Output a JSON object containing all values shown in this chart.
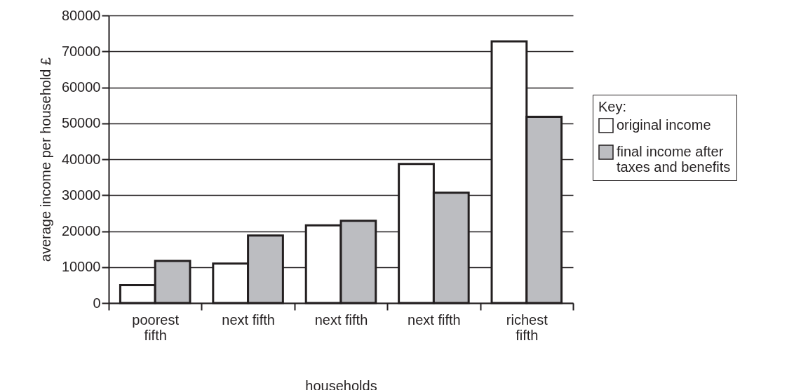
{
  "chart_data": {
    "type": "bar",
    "xlabel": "households",
    "ylabel": "average income per household £",
    "legend_title": "Key:",
    "categories": [
      "poorest\nfifth",
      "next fifth",
      "next fifth",
      "next fifth",
      "richest\nfifth"
    ],
    "series": [
      {
        "name": "original income",
        "color": "#ffffff",
        "values": [
          5000,
          11000,
          21600,
          38700,
          72800
        ]
      },
      {
        "name": "final income after\ntaxes and benefits",
        "color": "#bcbdc1",
        "values": [
          11700,
          18800,
          22900,
          30700,
          51800
        ]
      }
    ],
    "ylim": [
      0,
      80000
    ],
    "yticks": [
      0,
      10000,
      20000,
      30000,
      40000,
      50000,
      60000,
      70000,
      80000
    ],
    "grid": "y",
    "legend": "right"
  }
}
